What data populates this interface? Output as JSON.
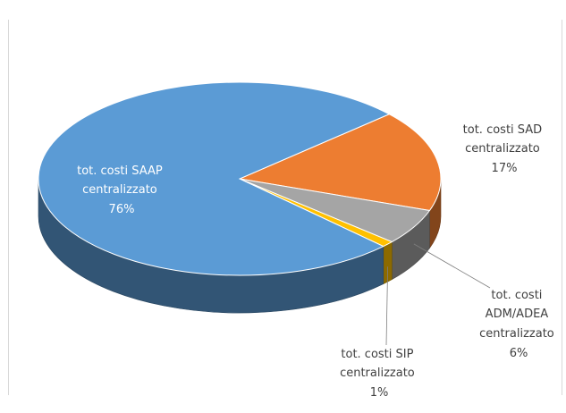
{
  "colors": {
    "saap": "#5b9bd5",
    "sad": "#ed7d31",
    "adm": "#a5a5a5",
    "sip": "#ffc000",
    "label_dark": "#404040",
    "label_light": "#ffffff"
  },
  "chart_data": {
    "type": "pie",
    "style": "3d",
    "title": "",
    "legend": "none",
    "slices": [
      {
        "label_lines": [
          "tot. costi SAD",
          "centralizzato",
          "17%"
        ],
        "value": 17,
        "color_key": "sad"
      },
      {
        "label_lines": [
          "tot. costi",
          "ADM/ADEA",
          "centralizzato",
          "6%"
        ],
        "value": 6,
        "color_key": "adm"
      },
      {
        "label_lines": [
          "tot. costi SIP",
          "centralizzato",
          "1%"
        ],
        "value": 1,
        "color_key": "sip"
      },
      {
        "label_lines": [
          "tot. costi SAAP",
          "centralizzato",
          "76%"
        ],
        "value": 76,
        "color_key": "saap"
      }
    ]
  }
}
